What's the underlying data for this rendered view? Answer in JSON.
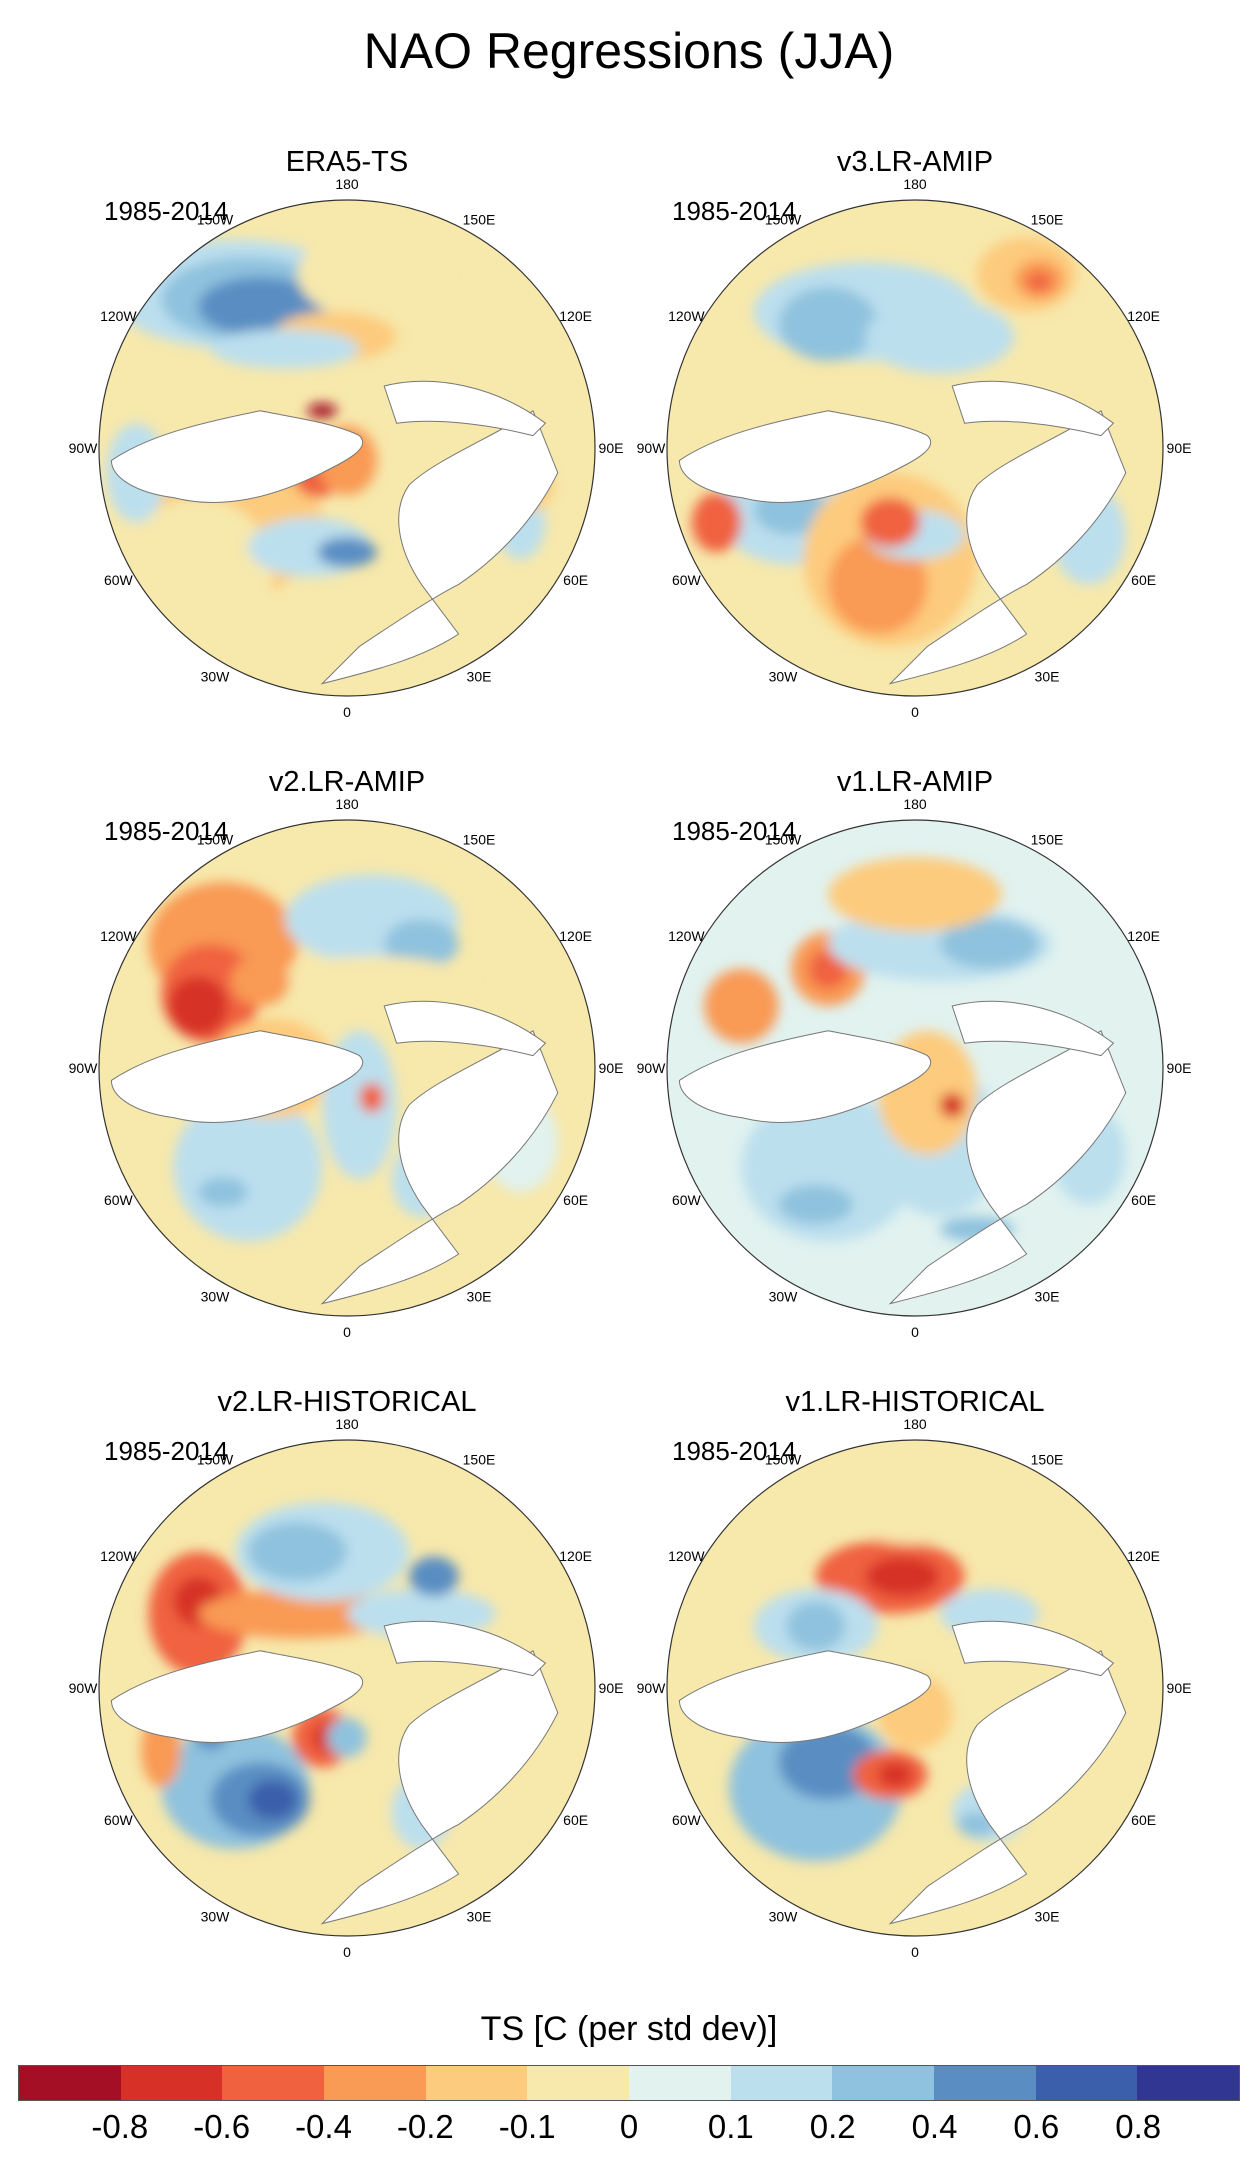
{
  "title": "NAO Regressions (JJA)",
  "chart_data": {
    "type": "heatmap",
    "projection": "north polar stereographic",
    "variable": "TS",
    "units_label": "TS [C (per std dev)]",
    "longitude_labels": [
      "180",
      "150E",
      "120E",
      "90E",
      "60E",
      "30E",
      "0",
      "30W",
      "60W",
      "90W",
      "120W",
      "150W"
    ],
    "colorbar": {
      "ticks": [
        "-0.8",
        "-0.6",
        "-0.4",
        "-0.2",
        "-0.1",
        "0",
        "0.1",
        "0.2",
        "0.4",
        "0.6",
        "0.8"
      ],
      "colors": [
        "#a50f26",
        "#d73027",
        "#f0623f",
        "#f99a55",
        "#fdcb7d",
        "#f7e8ab",
        "#e1f2ef",
        "#bcdfee",
        "#8fc2de",
        "#5a8ec3",
        "#3b5fab",
        "#313693"
      ]
    },
    "panels": [
      {
        "title": "ERA5-TS",
        "period": "1985-2014"
      },
      {
        "title": "v3.LR-AMIP",
        "period": "1985-2014"
      },
      {
        "title": "v2.LR-AMIP",
        "period": "1985-2014"
      },
      {
        "title": "v1.LR-AMIP",
        "period": "1985-2014"
      },
      {
        "title": "v2.LR-HISTORICAL",
        "period": "1985-2014"
      },
      {
        "title": "v1.LR-HISTORICAL",
        "period": "1985-2014"
      }
    ]
  }
}
